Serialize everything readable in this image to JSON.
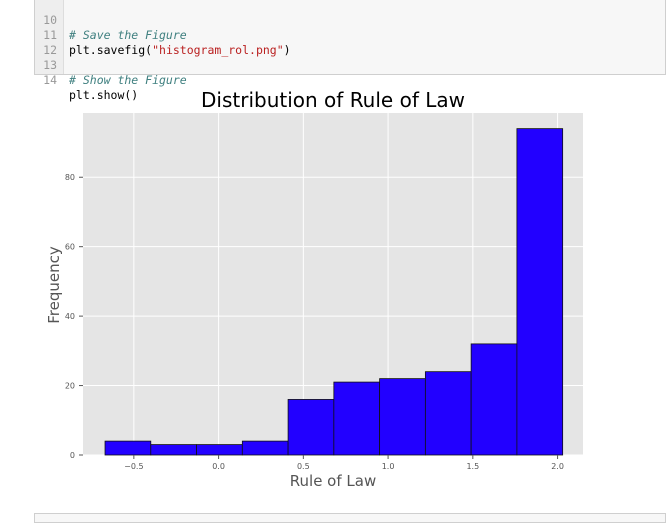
{
  "code_cell": {
    "lines": [
      {
        "number": "10",
        "text": "# Save the Figure",
        "kind": "comment"
      },
      {
        "number": "11",
        "prefix": "plt.savefig(",
        "string": "\"histogram_rol.png\"",
        "suffix": ")",
        "kind": "call"
      },
      {
        "number": "12",
        "text": "",
        "kind": "blank"
      },
      {
        "number": "13",
        "text": "# Show the Figure",
        "kind": "comment"
      },
      {
        "number": "14",
        "text": "plt.show()",
        "kind": "plain"
      }
    ]
  },
  "colors": {
    "plot_background": "#e5e5e5",
    "bar_fill": "#2200ff",
    "bar_edge": "#111111",
    "grid": "#ffffff"
  },
  "chart_data": {
    "type": "bar",
    "title": "Distribution of Rule of Law",
    "xlabel": "Rule of Law",
    "ylabel": "Frequency",
    "bins": [
      {
        "x0": -0.67,
        "x1": -0.4,
        "count": 4
      },
      {
        "x0": -0.4,
        "x1": -0.13,
        "count": 3
      },
      {
        "x0": -0.13,
        "x1": 0.14,
        "count": 3
      },
      {
        "x0": 0.14,
        "x1": 0.41,
        "count": 4
      },
      {
        "x0": 0.41,
        "x1": 0.68,
        "count": 16
      },
      {
        "x0": 0.68,
        "x1": 0.95,
        "count": 21
      },
      {
        "x0": 0.95,
        "x1": 1.22,
        "count": 22
      },
      {
        "x0": 1.22,
        "x1": 1.49,
        "count": 24
      },
      {
        "x0": 1.49,
        "x1": 1.76,
        "count": 32
      },
      {
        "x0": 1.76,
        "x1": 2.03,
        "count": 94
      }
    ],
    "xlim": [
      -0.8,
      2.15
    ],
    "ylim": [
      0,
      98.5
    ],
    "xticks": [
      -0.5,
      0.0,
      0.5,
      1.0,
      1.5,
      2.0
    ],
    "xtick_labels": [
      "−0.5",
      "0.0",
      "0.5",
      "1.0",
      "1.5",
      "2.0"
    ],
    "yticks": [
      0,
      20,
      40,
      60,
      80
    ],
    "ytick_labels": [
      "0",
      "20",
      "40",
      "60",
      "80"
    ],
    "grid": true
  }
}
